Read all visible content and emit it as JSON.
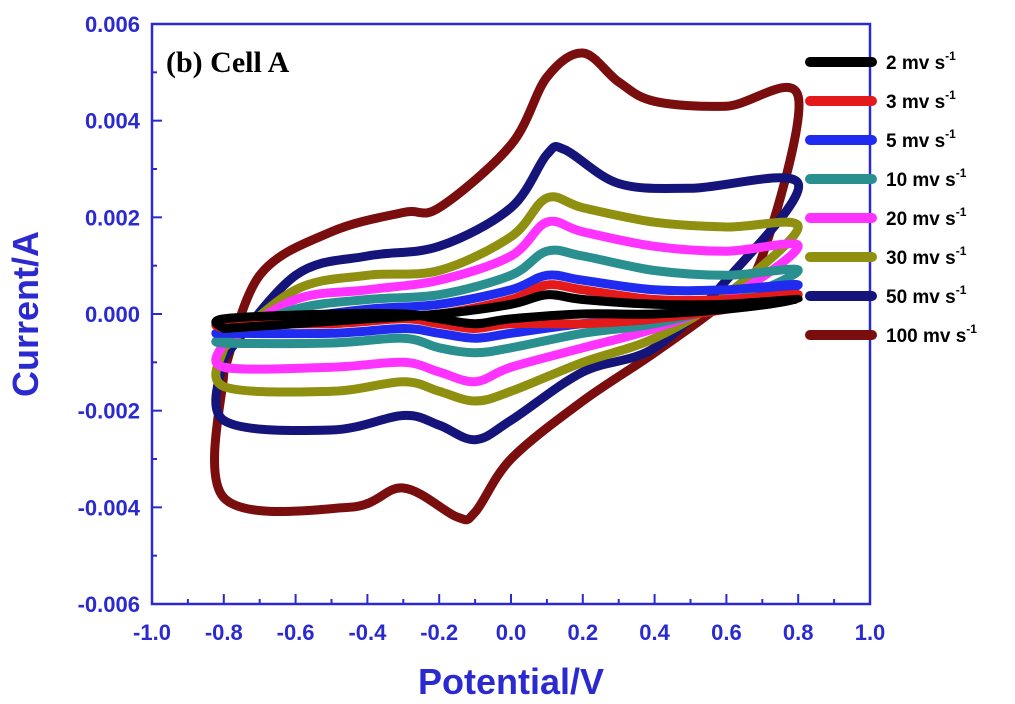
{
  "chart_data": {
    "type": "line",
    "title": "(b)  Cell A",
    "xlabel": "Potential/V",
    "ylabel": "Current/A",
    "xlim": [
      -1.0,
      1.0
    ],
    "ylim": [
      -0.006,
      0.006
    ],
    "x_ticks": [
      "-1.0",
      "-0.8",
      "-0.6",
      "-0.4",
      "-0.2",
      "0.0",
      "0.2",
      "0.4",
      "0.6",
      "0.8",
      "1.0"
    ],
    "y_ticks": [
      "0.006",
      "0.004",
      "0.002",
      "0.000",
      "-0.002",
      "-0.004",
      "-0.006"
    ],
    "grid": false,
    "legend_position": "top-right",
    "series": [
      {
        "name": "2 mv s",
        "superscript": "-1",
        "color": "#000000",
        "scale": 0.2,
        "forward": [
          [
            -0.8,
            -0.0003
          ],
          [
            -0.6,
            -0.0002
          ],
          [
            -0.4,
            -0.0001
          ],
          [
            -0.2,
            0.0
          ],
          [
            0.0,
            0.0002
          ],
          [
            0.1,
            0.0004
          ],
          [
            0.2,
            0.0003
          ],
          [
            0.4,
            0.0002
          ],
          [
            0.6,
            0.0002
          ],
          [
            0.8,
            0.0003
          ]
        ],
        "reverse": [
          [
            0.8,
            0.0004
          ],
          [
            0.6,
            0.0001
          ],
          [
            0.4,
            0.0
          ],
          [
            0.2,
            0.0
          ],
          [
            0.0,
            -0.0001
          ],
          [
            -0.1,
            -0.0002
          ],
          [
            -0.2,
            -0.0001
          ],
          [
            -0.3,
            0.0
          ],
          [
            -0.5,
            0.0
          ],
          [
            -0.8,
            -0.0001
          ]
        ]
      },
      {
        "name": "3 mv s",
        "superscript": "-1",
        "color": "#e41a1a",
        "scale": 0.3,
        "forward": [
          [
            -0.8,
            -0.0003
          ],
          [
            -0.6,
            -0.0002
          ],
          [
            -0.4,
            -0.0001
          ],
          [
            -0.2,
            0.0
          ],
          [
            0.0,
            0.0003
          ],
          [
            0.1,
            0.0006
          ],
          [
            0.2,
            0.0005
          ],
          [
            0.4,
            0.0003
          ],
          [
            0.6,
            0.0003
          ],
          [
            0.8,
            0.0004
          ]
        ],
        "reverse": [
          [
            0.8,
            0.0005
          ],
          [
            0.6,
            0.0001
          ],
          [
            0.4,
            -0.0001
          ],
          [
            0.2,
            -0.0002
          ],
          [
            0.0,
            -0.0002
          ],
          [
            -0.1,
            -0.0003
          ],
          [
            -0.2,
            -0.0002
          ],
          [
            -0.3,
            -0.0001
          ],
          [
            -0.5,
            -0.0002
          ],
          [
            -0.8,
            -0.0002
          ]
        ]
      },
      {
        "name": "5 mv s",
        "superscript": "-1",
        "color": "#1f2bef",
        "scale": 0.5,
        "forward": [
          [
            -0.8,
            -0.0004
          ],
          [
            -0.6,
            -0.0001
          ],
          [
            -0.4,
            0.0001
          ],
          [
            -0.2,
            0.0002
          ],
          [
            0.0,
            0.0005
          ],
          [
            0.1,
            0.0008
          ],
          [
            0.2,
            0.0007
          ],
          [
            0.4,
            0.0005
          ],
          [
            0.6,
            0.0005
          ],
          [
            0.8,
            0.0006
          ]
        ],
        "reverse": [
          [
            0.8,
            0.0007
          ],
          [
            0.6,
            0.0002
          ],
          [
            0.4,
            -0.0001
          ],
          [
            0.2,
            -0.0002
          ],
          [
            0.0,
            -0.0004
          ],
          [
            -0.1,
            -0.0005
          ],
          [
            -0.2,
            -0.0004
          ],
          [
            -0.3,
            -0.0003
          ],
          [
            -0.5,
            -0.0004
          ],
          [
            -0.8,
            -0.0004
          ]
        ]
      },
      {
        "name": "10 mv s",
        "superscript": "-1",
        "color": "#2a8f8f",
        "scale": 1.0,
        "forward": [
          [
            -0.8,
            -0.0005
          ],
          [
            -0.6,
            0.0001
          ],
          [
            -0.4,
            0.0003
          ],
          [
            -0.2,
            0.0004
          ],
          [
            0.0,
            0.0008
          ],
          [
            0.1,
            0.0013
          ],
          [
            0.2,
            0.0012
          ],
          [
            0.4,
            0.0009
          ],
          [
            0.6,
            0.0008
          ],
          [
            0.8,
            0.0009
          ]
        ],
        "reverse": [
          [
            0.8,
            0.0008
          ],
          [
            0.6,
            0.0002
          ],
          [
            0.4,
            -0.0002
          ],
          [
            0.2,
            -0.0004
          ],
          [
            0.0,
            -0.0007
          ],
          [
            -0.1,
            -0.0008
          ],
          [
            -0.2,
            -0.0007
          ],
          [
            -0.3,
            -0.0005
          ],
          [
            -0.5,
            -0.0006
          ],
          [
            -0.8,
            -0.0006
          ]
        ]
      },
      {
        "name": "20 mv s",
        "superscript": "-1",
        "color": "#ff33ff",
        "scale": 1.4,
        "forward": [
          [
            -0.8,
            -0.0006
          ],
          [
            -0.6,
            0.0003
          ],
          [
            -0.4,
            0.0005
          ],
          [
            -0.2,
            0.0007
          ],
          [
            0.0,
            0.0012
          ],
          [
            0.1,
            0.0019
          ],
          [
            0.2,
            0.0017
          ],
          [
            0.4,
            0.0014
          ],
          [
            0.6,
            0.0013
          ],
          [
            0.8,
            0.0014
          ]
        ],
        "reverse": [
          [
            0.8,
            0.0012
          ],
          [
            0.6,
            0.0003
          ],
          [
            0.4,
            -0.0003
          ],
          [
            0.2,
            -0.0007
          ],
          [
            0.0,
            -0.0011
          ],
          [
            -0.1,
            -0.0014
          ],
          [
            -0.2,
            -0.0012
          ],
          [
            -0.3,
            -0.001
          ],
          [
            -0.5,
            -0.0011
          ],
          [
            -0.8,
            -0.0011
          ]
        ]
      },
      {
        "name": "30 mv s",
        "superscript": "-1",
        "color": "#8f8f10",
        "scale": 1.8,
        "forward": [
          [
            -0.8,
            -0.0007
          ],
          [
            -0.6,
            0.0005
          ],
          [
            -0.4,
            0.0008
          ],
          [
            -0.2,
            0.0009
          ],
          [
            0.0,
            0.0016
          ],
          [
            0.1,
            0.0024
          ],
          [
            0.2,
            0.0022
          ],
          [
            0.4,
            0.0019
          ],
          [
            0.6,
            0.0018
          ],
          [
            0.8,
            0.0018
          ]
        ],
        "reverse": [
          [
            0.8,
            0.0016
          ],
          [
            0.6,
            0.0004
          ],
          [
            0.4,
            -0.0005
          ],
          [
            0.2,
            -0.001
          ],
          [
            0.0,
            -0.0016
          ],
          [
            -0.1,
            -0.0018
          ],
          [
            -0.2,
            -0.0016
          ],
          [
            -0.3,
            -0.0014
          ],
          [
            -0.5,
            -0.0016
          ],
          [
            -0.8,
            -0.0015
          ]
        ]
      },
      {
        "name": "50 mv s",
        "superscript": "-1",
        "color": "#14147a",
        "scale": 2.6,
        "forward": [
          [
            -0.8,
            -0.0009
          ],
          [
            -0.6,
            0.0008
          ],
          [
            -0.4,
            0.0012
          ],
          [
            -0.2,
            0.0014
          ],
          [
            0.0,
            0.0022
          ],
          [
            0.1,
            0.0033
          ],
          [
            0.15,
            0.0034
          ],
          [
            0.3,
            0.0027
          ],
          [
            0.5,
            0.0026
          ],
          [
            0.8,
            0.0027
          ]
        ],
        "reverse": [
          [
            0.8,
            0.0026
          ],
          [
            0.6,
            0.0007
          ],
          [
            0.4,
            -0.0007
          ],
          [
            0.2,
            -0.0012
          ],
          [
            0.0,
            -0.0022
          ],
          [
            -0.1,
            -0.0026
          ],
          [
            -0.2,
            -0.0023
          ],
          [
            -0.3,
            -0.0021
          ],
          [
            -0.5,
            -0.0024
          ],
          [
            -0.8,
            -0.0022
          ]
        ]
      },
      {
        "name": "100 mv s",
        "superscript": "-1",
        "color": "#7a0d0d",
        "scale": 4.0,
        "forward": [
          [
            -0.8,
            -0.0012
          ],
          [
            -0.7,
            0.0008
          ],
          [
            -0.5,
            0.0017
          ],
          [
            -0.3,
            0.0021
          ],
          [
            -0.2,
            0.0022
          ],
          [
            0.0,
            0.0035
          ],
          [
            0.1,
            0.0049
          ],
          [
            0.2,
            0.0054
          ],
          [
            0.3,
            0.0048
          ],
          [
            0.4,
            0.0044
          ],
          [
            0.6,
            0.0043
          ],
          [
            0.8,
            0.0045
          ]
        ],
        "reverse": [
          [
            0.8,
            0.0044
          ],
          [
            0.7,
            0.0012
          ],
          [
            0.6,
            0.0003
          ],
          [
            0.4,
            -0.0008
          ],
          [
            0.2,
            -0.0018
          ],
          [
            0.0,
            -0.003
          ],
          [
            -0.1,
            -0.0041
          ],
          [
            -0.15,
            -0.0042
          ],
          [
            -0.3,
            -0.0036
          ],
          [
            -0.45,
            -0.004
          ],
          [
            -0.8,
            -0.0038
          ]
        ]
      }
    ]
  }
}
